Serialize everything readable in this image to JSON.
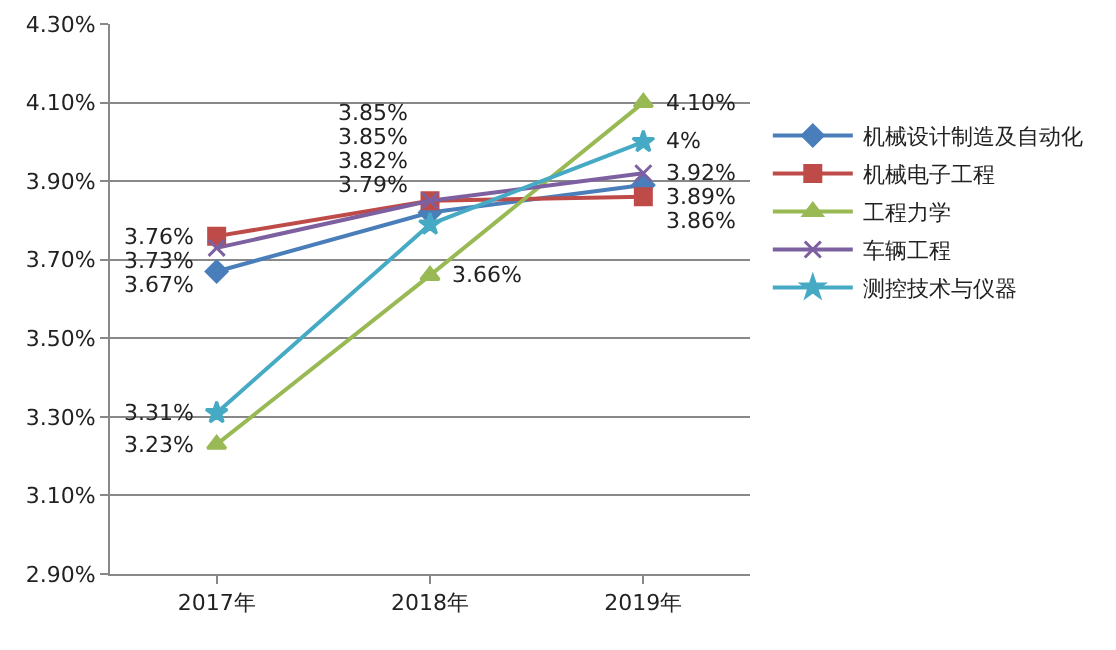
{
  "chart_data": {
    "type": "line",
    "categories": [
      "2017年",
      "2018年",
      "2019年"
    ],
    "series": [
      {
        "name": "机械设计制造及自动化",
        "color": "#4a7ebb",
        "marker": "diamond",
        "values": [
          3.67,
          3.82,
          3.89
        ],
        "value_labels": [
          "3.67%",
          "3.82%",
          "3.89%"
        ]
      },
      {
        "name": "机械电子工程",
        "color": "#be4b48",
        "marker": "square",
        "values": [
          3.76,
          3.85,
          3.86
        ],
        "value_labels": [
          "3.76%",
          "3.85%",
          "3.86%"
        ]
      },
      {
        "name": "工程力学",
        "color": "#98b954",
        "marker": "triangle",
        "values": [
          3.23,
          3.66,
          4.1
        ],
        "value_labels": [
          "3.23%",
          "3.66%",
          "4.10%"
        ]
      },
      {
        "name": "车辆工程",
        "color": "#7d60a0",
        "marker": "cross",
        "values": [
          3.73,
          3.85,
          3.92
        ],
        "value_labels": [
          "3.73%",
          "3.85%",
          "3.92%"
        ]
      },
      {
        "name": "测控技术与仪器",
        "color": "#46aac5",
        "marker": "star",
        "values": [
          3.31,
          3.79,
          4.0
        ],
        "value_labels": [
          "3.31%",
          "3.79%",
          "4%"
        ]
      }
    ],
    "ylim": [
      2.9,
      4.3
    ],
    "yticks": [
      {
        "value": 2.9,
        "label": "2.90%"
      },
      {
        "value": 3.1,
        "label": "3.10%"
      },
      {
        "value": 3.3,
        "label": "3.30%"
      },
      {
        "value": 3.5,
        "label": "3.50%"
      },
      {
        "value": 3.7,
        "label": "3.70%"
      },
      {
        "value": 3.9,
        "label": "3.90%"
      },
      {
        "value": 4.1,
        "label": "4.10%"
      },
      {
        "value": 4.3,
        "label": "4.30%"
      }
    ],
    "grid": "y",
    "legend": "right",
    "line_style": "solid"
  }
}
